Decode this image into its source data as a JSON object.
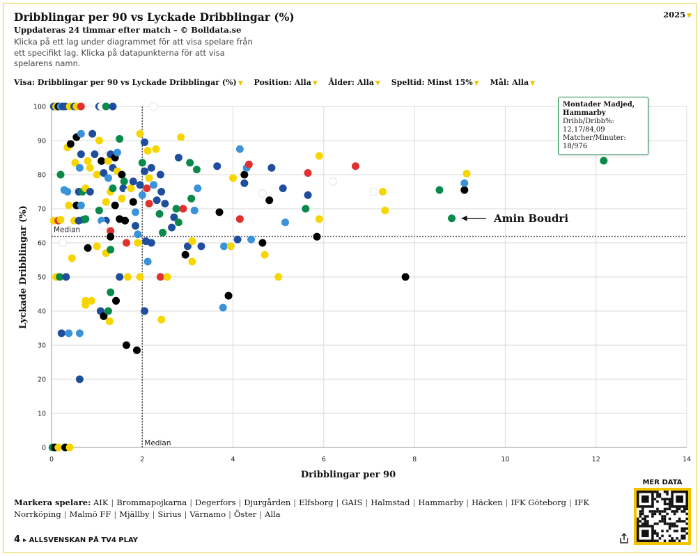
{
  "header": {
    "title": "Dribblingar per 90 vs Lyckade Dribblingar (%)",
    "subtitle": "Uppdateras 24 timmar efter match – © Bolldata.se",
    "description": "Klicka på ett lag under diagrammet för att visa spelare från ett specifikt lag. Klicka på datapunkterna för att visa spelarens namn.",
    "year": "2025"
  },
  "filters": [
    {
      "label": "Visa:",
      "value": "Dribblingar per 90 vs Lyckade Dribblingar (%)"
    },
    {
      "label": "Position:",
      "value": "Alla"
    },
    {
      "label": "Ålder:",
      "value": "Alla"
    },
    {
      "label": "Speltid:",
      "value": "Minst 15%"
    },
    {
      "label": "Mål:",
      "value": "Alla"
    }
  ],
  "tooltip": {
    "name": "Montader Madjed, Hammarby",
    "line1": "Dribb/Dribb%:",
    "line2": "12,17/84,09",
    "line3": "Matcher/Minuter:",
    "line4": "18/976"
  },
  "highlight_label": "Amin Boudri",
  "teams_label": "Markera spelare:",
  "teams": [
    "AIK",
    "Brommapojkarna",
    "Degerfors",
    "Djurgården",
    "Elfsborg",
    "GAIS",
    "Halmstad",
    "Hammarby",
    "Häcken",
    "IFK Göteborg",
    "IFK Norrköping",
    "Malmö FF",
    "Mjällby",
    "Sirius",
    "Värnamo",
    "Öster",
    "Alla"
  ],
  "footer": {
    "logo": "4",
    "text": "ALLSVENSKAN PÅ TV4 PLAY"
  },
  "qr_label": "MER DATA",
  "colors": {
    "accent": "#f2c300",
    "yellow": "#f7d600",
    "black": "#000000",
    "navy": "#1f4e9c",
    "lightblue": "#3a93d8",
    "green": "#0a8a4a",
    "red": "#e03030",
    "white": "#ffffff",
    "grid": "#d9d9d9"
  },
  "chart_data": {
    "type": "scatter",
    "title": "Dribblingar per 90 vs Lyckade Dribblingar (%)",
    "xlabel": "Dribblingar per 90",
    "ylabel": "Lyckade Dribblingar (%)",
    "xlim": [
      0,
      14
    ],
    "ylim": [
      0,
      100
    ],
    "xticks": [
      0,
      2,
      4,
      6,
      8,
      10,
      12,
      14
    ],
    "yticks": [
      0,
      10,
      20,
      30,
      40,
      50,
      60,
      70,
      80,
      90,
      100
    ],
    "grid": true,
    "median": {
      "x": 2.0,
      "y": 61.9,
      "label": "Median"
    },
    "highlighted": {
      "name": "Amin Boudri",
      "x": 8.82,
      "y": 67.2
    },
    "points": [
      {
        "x": 0.05,
        "y": 100,
        "c": "navy"
      },
      {
        "x": 0.1,
        "y": 100,
        "c": "yellow"
      },
      {
        "x": 0.15,
        "y": 100,
        "c": "black"
      },
      {
        "x": 0.2,
        "y": 100,
        "c": "lightblue"
      },
      {
        "x": 0.25,
        "y": 100,
        "c": "navy"
      },
      {
        "x": 0.3,
        "y": 100,
        "c": "navy"
      },
      {
        "x": 0.4,
        "y": 100,
        "c": "yellow"
      },
      {
        "x": 0.5,
        "y": 100,
        "c": "navy"
      },
      {
        "x": 0.55,
        "y": 100,
        "c": "yellow"
      },
      {
        "x": 0.65,
        "y": 100,
        "c": "red"
      },
      {
        "x": 1.05,
        "y": 100,
        "c": "navy"
      },
      {
        "x": 1.1,
        "y": 100,
        "c": "white"
      },
      {
        "x": 1.2,
        "y": 100,
        "c": "green"
      },
      {
        "x": 1.35,
        "y": 100,
        "c": "navy"
      },
      {
        "x": 2.25,
        "y": 100,
        "c": "white"
      },
      {
        "x": 0.2,
        "y": 80,
        "c": "green"
      },
      {
        "x": 0.35,
        "y": 88,
        "c": "yellow"
      },
      {
        "x": 0.35,
        "y": 75,
        "c": "lightblue"
      },
      {
        "x": 0.42,
        "y": 89,
        "c": "black"
      },
      {
        "x": 0.52,
        "y": 83.5,
        "c": "yellow"
      },
      {
        "x": 0.55,
        "y": 91,
        "c": "black"
      },
      {
        "x": 0.55,
        "y": 75,
        "c": "white"
      },
      {
        "x": 0.6,
        "y": 75,
        "c": "navy"
      },
      {
        "x": 0.62,
        "y": 82,
        "c": "lightblue"
      },
      {
        "x": 0.65,
        "y": 92,
        "c": "lightblue"
      },
      {
        "x": 0.65,
        "y": 86,
        "c": "navy"
      },
      {
        "x": 0.68,
        "y": 75,
        "c": "green"
      },
      {
        "x": 0.7,
        "y": 66.8,
        "c": "green"
      },
      {
        "x": 0.75,
        "y": 76,
        "c": "yellow"
      },
      {
        "x": 0.8,
        "y": 84,
        "c": "yellow"
      },
      {
        "x": 0.85,
        "y": 82,
        "c": "yellow"
      },
      {
        "x": 0.85,
        "y": 75,
        "c": "navy"
      },
      {
        "x": 0.9,
        "y": 92,
        "c": "navy"
      },
      {
        "x": 0.95,
        "y": 86,
        "c": "navy"
      },
      {
        "x": 1.0,
        "y": 80,
        "c": "yellow"
      },
      {
        "x": 1.05,
        "y": 69.5,
        "c": "green"
      },
      {
        "x": 1.05,
        "y": 90,
        "c": "yellow"
      },
      {
        "x": 1.1,
        "y": 84,
        "c": "black"
      },
      {
        "x": 1.12,
        "y": 87,
        "c": "white"
      },
      {
        "x": 1.15,
        "y": 80.5,
        "c": "navy"
      },
      {
        "x": 1.2,
        "y": 72,
        "c": "yellow"
      },
      {
        "x": 1.2,
        "y": 66.5,
        "c": "navy"
      },
      {
        "x": 1.25,
        "y": 84,
        "c": "yellow"
      },
      {
        "x": 1.25,
        "y": 79,
        "c": "lightblue"
      },
      {
        "x": 1.3,
        "y": 86,
        "c": "navy"
      },
      {
        "x": 1.3,
        "y": 75,
        "c": "yellow"
      },
      {
        "x": 1.3,
        "y": 63.5,
        "c": "red"
      },
      {
        "x": 1.3,
        "y": 61.8,
        "c": "black"
      },
      {
        "x": 1.35,
        "y": 82,
        "c": "navy"
      },
      {
        "x": 1.35,
        "y": 76,
        "c": "green"
      },
      {
        "x": 1.4,
        "y": 71,
        "c": "black"
      },
      {
        "x": 1.4,
        "y": 85,
        "c": "black"
      },
      {
        "x": 1.45,
        "y": 86.5,
        "c": "lightblue"
      },
      {
        "x": 1.45,
        "y": 81,
        "c": "yellow"
      },
      {
        "x": 1.5,
        "y": 90.5,
        "c": "green"
      },
      {
        "x": 1.5,
        "y": 67,
        "c": "black"
      },
      {
        "x": 1.55,
        "y": 80,
        "c": "black"
      },
      {
        "x": 1.55,
        "y": 73,
        "c": "yellow"
      },
      {
        "x": 1.58,
        "y": 76,
        "c": "navy"
      },
      {
        "x": 1.6,
        "y": 78,
        "c": "green"
      },
      {
        "x": 1.62,
        "y": 66.5,
        "c": "black"
      },
      {
        "x": 1.65,
        "y": 60,
        "c": "red"
      },
      {
        "x": 1.7,
        "y": 75,
        "c": "white"
      },
      {
        "x": 1.75,
        "y": 76,
        "c": "yellow"
      },
      {
        "x": 1.8,
        "y": 72,
        "c": "black"
      },
      {
        "x": 1.8,
        "y": 78,
        "c": "navy"
      },
      {
        "x": 1.85,
        "y": 69,
        "c": "lightblue"
      },
      {
        "x": 1.85,
        "y": 65,
        "c": "navy"
      },
      {
        "x": 1.9,
        "y": 60,
        "c": "yellow"
      },
      {
        "x": 1.9,
        "y": 62.5,
        "c": "lightblue"
      },
      {
        "x": 1.95,
        "y": 92,
        "c": "yellow"
      },
      {
        "x": 1.95,
        "y": 77,
        "c": "navy"
      },
      {
        "x": 2.0,
        "y": 83.5,
        "c": "green"
      },
      {
        "x": 2.0,
        "y": 74,
        "c": "lightblue"
      },
      {
        "x": 2.05,
        "y": 89.5,
        "c": "navy"
      },
      {
        "x": 2.05,
        "y": 81,
        "c": "navy"
      },
      {
        "x": 2.08,
        "y": 60.5,
        "c": "navy"
      },
      {
        "x": 2.1,
        "y": 76,
        "c": "red"
      },
      {
        "x": 2.12,
        "y": 87,
        "c": "yellow"
      },
      {
        "x": 2.15,
        "y": 79,
        "c": "yellow"
      },
      {
        "x": 2.15,
        "y": 71.5,
        "c": "red"
      },
      {
        "x": 2.2,
        "y": 82,
        "c": "navy"
      },
      {
        "x": 2.2,
        "y": 60,
        "c": "navy"
      },
      {
        "x": 2.25,
        "y": 77,
        "c": "lightblue"
      },
      {
        "x": 2.3,
        "y": 87.5,
        "c": "yellow"
      },
      {
        "x": 2.32,
        "y": 72.5,
        "c": "navy"
      },
      {
        "x": 2.38,
        "y": 68.5,
        "c": "green"
      },
      {
        "x": 2.4,
        "y": 80,
        "c": "navy"
      },
      {
        "x": 2.42,
        "y": 75,
        "c": "navy"
      },
      {
        "x": 2.45,
        "y": 63,
        "c": "green"
      },
      {
        "x": 2.5,
        "y": 71.5,
        "c": "navy"
      },
      {
        "x": 2.65,
        "y": 64.5,
        "c": "navy"
      },
      {
        "x": 2.7,
        "y": 67.5,
        "c": "navy"
      },
      {
        "x": 2.75,
        "y": 70,
        "c": "green"
      },
      {
        "x": 2.8,
        "y": 85,
        "c": "navy"
      },
      {
        "x": 2.8,
        "y": 66,
        "c": "green"
      },
      {
        "x": 2.85,
        "y": 91,
        "c": "yellow"
      },
      {
        "x": 2.9,
        "y": 70,
        "c": "red"
      },
      {
        "x": 2.95,
        "y": 56.5,
        "c": "black"
      },
      {
        "x": 3.0,
        "y": 59,
        "c": "navy"
      },
      {
        "x": 3.05,
        "y": 83.5,
        "c": "green"
      },
      {
        "x": 3.08,
        "y": 73,
        "c": "green"
      },
      {
        "x": 3.1,
        "y": 60.5,
        "c": "yellow"
      },
      {
        "x": 3.15,
        "y": 69.5,
        "c": "lightblue"
      },
      {
        "x": 3.2,
        "y": 81.5,
        "c": "green"
      },
      {
        "x": 3.22,
        "y": 76,
        "c": "lightblue"
      },
      {
        "x": 3.3,
        "y": 59,
        "c": "navy"
      },
      {
        "x": 3.65,
        "y": 82.5,
        "c": "navy"
      },
      {
        "x": 3.7,
        "y": 69,
        "c": "black"
      },
      {
        "x": 3.8,
        "y": 59,
        "c": "lightblue"
      },
      {
        "x": 3.95,
        "y": 59,
        "c": "yellow"
      },
      {
        "x": 4.0,
        "y": 79,
        "c": "yellow"
      },
      {
        "x": 4.1,
        "y": 61,
        "c": "navy"
      },
      {
        "x": 4.15,
        "y": 87.5,
        "c": "lightblue"
      },
      {
        "x": 4.15,
        "y": 67,
        "c": "red"
      },
      {
        "x": 4.25,
        "y": 80,
        "c": "black"
      },
      {
        "x": 4.25,
        "y": 77.5,
        "c": "navy"
      },
      {
        "x": 4.3,
        "y": 82,
        "c": "lightblue"
      },
      {
        "x": 4.35,
        "y": 83,
        "c": "red"
      },
      {
        "x": 4.4,
        "y": 61,
        "c": "lightblue"
      },
      {
        "x": 4.65,
        "y": 60,
        "c": "black"
      },
      {
        "x": 4.65,
        "y": 74.5,
        "c": "white"
      },
      {
        "x": 4.7,
        "y": 56.5,
        "c": "yellow"
      },
      {
        "x": 4.8,
        "y": 72.5,
        "c": "black"
      },
      {
        "x": 4.85,
        "y": 82,
        "c": "navy"
      },
      {
        "x": 5.0,
        "y": 50,
        "c": "yellow"
      },
      {
        "x": 5.1,
        "y": 76,
        "c": "navy"
      },
      {
        "x": 5.15,
        "y": 66,
        "c": "lightblue"
      },
      {
        "x": 5.6,
        "y": 70,
        "c": "green"
      },
      {
        "x": 5.65,
        "y": 80.5,
        "c": "red"
      },
      {
        "x": 5.65,
        "y": 74,
        "c": "navy"
      },
      {
        "x": 5.85,
        "y": 61.8,
        "c": "black"
      },
      {
        "x": 5.9,
        "y": 85.5,
        "c": "yellow"
      },
      {
        "x": 5.9,
        "y": 67,
        "c": "yellow"
      },
      {
        "x": 6.2,
        "y": 78,
        "c": "white"
      },
      {
        "x": 6.7,
        "y": 82.5,
        "c": "red"
      },
      {
        "x": 7.1,
        "y": 75,
        "c": "white"
      },
      {
        "x": 7.3,
        "y": 75,
        "c": "yellow"
      },
      {
        "x": 7.35,
        "y": 69.5,
        "c": "yellow"
      },
      {
        "x": 7.8,
        "y": 50,
        "c": "black"
      },
      {
        "x": 8.55,
        "y": 75.5,
        "c": "green"
      },
      {
        "x": 9.1,
        "y": 75.5,
        "c": "black"
      },
      {
        "x": 9.1,
        "y": 77.5,
        "c": "lightblue"
      },
      {
        "x": 9.15,
        "y": 80.3,
        "c": "yellow"
      },
      {
        "x": 12.17,
        "y": 84.09,
        "c": "green"
      },
      {
        "x": 0.05,
        "y": 66.5,
        "c": "yellow"
      },
      {
        "x": 0.15,
        "y": 66.5,
        "c": "red"
      },
      {
        "x": 0.2,
        "y": 66.8,
        "c": "yellow"
      },
      {
        "x": 0.25,
        "y": 60,
        "c": "white"
      },
      {
        "x": 0.28,
        "y": 75.5,
        "c": "lightblue"
      },
      {
        "x": 0.38,
        "y": 71,
        "c": "yellow"
      },
      {
        "x": 0.45,
        "y": 55.5,
        "c": "yellow"
      },
      {
        "x": 0.5,
        "y": 66.5,
        "c": "yellow"
      },
      {
        "x": 0.55,
        "y": 71,
        "c": "black"
      },
      {
        "x": 0.6,
        "y": 66.5,
        "c": "navy"
      },
      {
        "x": 0.65,
        "y": 71,
        "c": "lightblue"
      },
      {
        "x": 0.75,
        "y": 67,
        "c": "green"
      },
      {
        "x": 0.8,
        "y": 58.5,
        "c": "black"
      },
      {
        "x": 1.0,
        "y": 59,
        "c": "yellow"
      },
      {
        "x": 1.1,
        "y": 66.5,
        "c": "lightblue"
      },
      {
        "x": 1.15,
        "y": 65,
        "c": "white"
      },
      {
        "x": 1.2,
        "y": 57,
        "c": "yellow"
      },
      {
        "x": 1.3,
        "y": 58,
        "c": "green"
      },
      {
        "x": 0.1,
        "y": 50,
        "c": "yellow"
      },
      {
        "x": 0.18,
        "y": 50,
        "c": "green"
      },
      {
        "x": 0.32,
        "y": 50,
        "c": "navy"
      },
      {
        "x": 0.22,
        "y": 33.5,
        "c": "navy"
      },
      {
        "x": 0.38,
        "y": 33.5,
        "c": "lightblue"
      },
      {
        "x": 0.62,
        "y": 33.5,
        "c": "lightblue"
      },
      {
        "x": 0.62,
        "y": 20,
        "c": "navy"
      },
      {
        "x": 0.75,
        "y": 43,
        "c": "yellow"
      },
      {
        "x": 0.75,
        "y": 41.8,
        "c": "yellow"
      },
      {
        "x": 0.88,
        "y": 43,
        "c": "yellow"
      },
      {
        "x": 1.08,
        "y": 40,
        "c": "navy"
      },
      {
        "x": 1.15,
        "y": 38.5,
        "c": "black"
      },
      {
        "x": 1.25,
        "y": 40,
        "c": "green"
      },
      {
        "x": 1.28,
        "y": 37,
        "c": "yellow"
      },
      {
        "x": 1.3,
        "y": 45.5,
        "c": "green"
      },
      {
        "x": 1.42,
        "y": 43,
        "c": "black"
      },
      {
        "x": 1.5,
        "y": 50,
        "c": "navy"
      },
      {
        "x": 1.65,
        "y": 30,
        "c": "black"
      },
      {
        "x": 1.68,
        "y": 50,
        "c": "yellow"
      },
      {
        "x": 1.88,
        "y": 28.5,
        "c": "black"
      },
      {
        "x": 1.95,
        "y": 50,
        "c": "yellow"
      },
      {
        "x": 2.05,
        "y": 40,
        "c": "navy"
      },
      {
        "x": 2.12,
        "y": 54.5,
        "c": "lightblue"
      },
      {
        "x": 2.4,
        "y": 50,
        "c": "red"
      },
      {
        "x": 2.42,
        "y": 37.5,
        "c": "yellow"
      },
      {
        "x": 2.55,
        "y": 50,
        "c": "yellow"
      },
      {
        "x": 3.1,
        "y": 54.5,
        "c": "yellow"
      },
      {
        "x": 3.78,
        "y": 41,
        "c": "lightblue"
      },
      {
        "x": 3.9,
        "y": 44.5,
        "c": "black"
      },
      {
        "x": 0.02,
        "y": 0,
        "c": "green"
      },
      {
        "x": 0.08,
        "y": 0,
        "c": "black"
      },
      {
        "x": 0.15,
        "y": 0,
        "c": "yellow"
      },
      {
        "x": 0.3,
        "y": 0,
        "c": "black"
      },
      {
        "x": 0.4,
        "y": 0,
        "c": "yellow"
      }
    ],
    "highlight_point": {
      "x": 8.82,
      "y": 67.2,
      "c": "green"
    }
  }
}
